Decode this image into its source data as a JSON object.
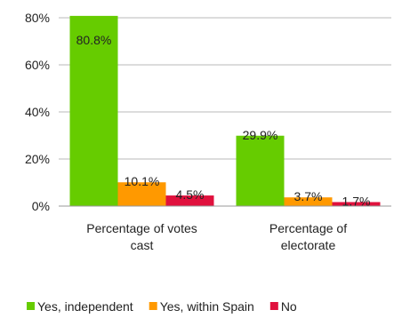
{
  "chart_data": {
    "type": "bar",
    "categories": [
      "Percentage of votes cast",
      "Percentage of electorate"
    ],
    "category_lines": [
      [
        "Percentage of votes",
        "cast"
      ],
      [
        "Percentage of",
        "electorate"
      ]
    ],
    "series": [
      {
        "name": "Yes, independent",
        "values": [
          80.8,
          29.9
        ],
        "labels": [
          "80.8%",
          "29.9%"
        ],
        "color": "#66cc00"
      },
      {
        "name": "Yes, within Spain",
        "values": [
          10.1,
          3.7
        ],
        "labels": [
          "10.1%",
          "3.7%"
        ],
        "color": "#ff9900"
      },
      {
        "name": "No",
        "values": [
          4.5,
          1.7
        ],
        "labels": [
          "4.5%",
          "1.7%"
        ],
        "color": "#e0113d"
      }
    ],
    "y_ticks": [
      0,
      20,
      40,
      60,
      80
    ],
    "y_tick_labels": [
      "0%",
      "20%",
      "40%",
      "60%",
      "80%"
    ],
    "ylim": [
      0,
      80
    ],
    "grid": true,
    "legend_position": "bottom",
    "title": "",
    "xlabel": "",
    "ylabel": ""
  }
}
